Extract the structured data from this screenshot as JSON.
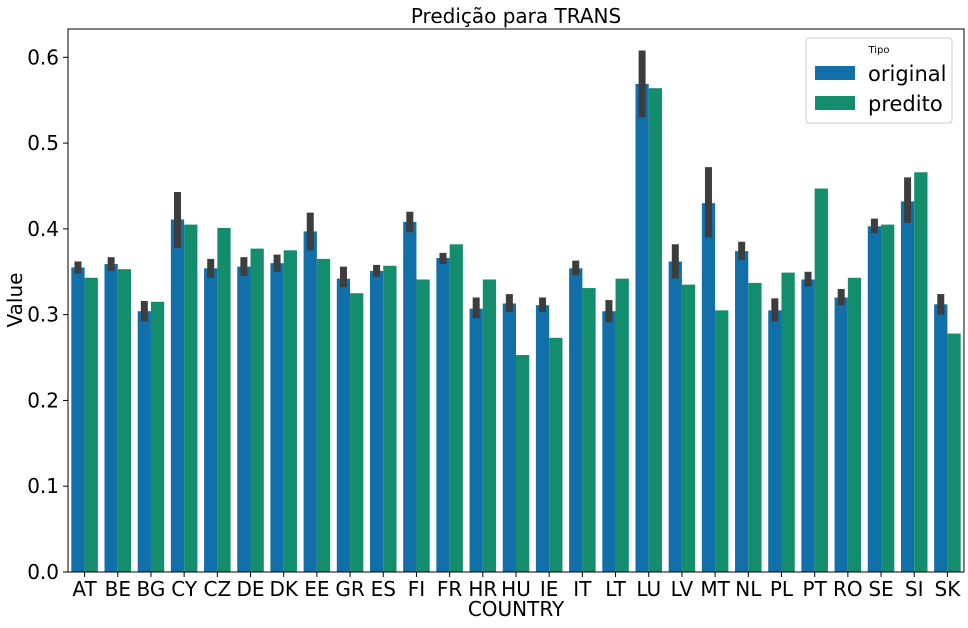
{
  "chart_data": {
    "type": "bar",
    "title": "Predição para TRANS",
    "xlabel": "COUNTRY",
    "ylabel": "Value",
    "ylim": [
      0,
      0.633
    ],
    "yticks": [
      "0.0",
      "0.1",
      "0.2",
      "0.3",
      "0.4",
      "0.5",
      "0.6"
    ],
    "yticks_values": [
      0,
      0.1,
      0.2,
      0.3,
      0.4,
      0.5,
      0.6
    ],
    "legend_title": "Tipo",
    "legend_placement": "top-right",
    "grid": false,
    "categories": [
      "AT",
      "BE",
      "BG",
      "CY",
      "CZ",
      "DE",
      "DK",
      "EE",
      "GR",
      "ES",
      "FI",
      "FR",
      "HR",
      "HU",
      "IE",
      "IT",
      "LT",
      "LU",
      "LV",
      "MT",
      "NL",
      "PL",
      "PT",
      "RO",
      "SE",
      "SI",
      "SK"
    ],
    "series": [
      {
        "name": "original",
        "color": "#1170aa",
        "values": [
          0.355,
          0.359,
          0.304,
          0.411,
          0.354,
          0.356,
          0.36,
          0.397,
          0.342,
          0.351,
          0.408,
          0.366,
          0.307,
          0.313,
          0.311,
          0.354,
          0.304,
          0.569,
          0.362,
          0.43,
          0.374,
          0.305,
          0.341,
          0.32,
          0.403,
          0.432,
          0.312
        ],
        "error_low": [
          0.348,
          0.351,
          0.292,
          0.378,
          0.343,
          0.345,
          0.35,
          0.375,
          0.332,
          0.344,
          0.396,
          0.359,
          0.296,
          0.303,
          0.303,
          0.346,
          0.291,
          0.53,
          0.342,
          0.39,
          0.364,
          0.292,
          0.333,
          0.311,
          0.395,
          0.407,
          0.3
        ],
        "error_high": [
          0.362,
          0.367,
          0.316,
          0.443,
          0.365,
          0.367,
          0.37,
          0.419,
          0.356,
          0.358,
          0.42,
          0.372,
          0.32,
          0.324,
          0.32,
          0.363,
          0.317,
          0.608,
          0.382,
          0.472,
          0.385,
          0.319,
          0.35,
          0.33,
          0.412,
          0.46,
          0.324
        ]
      },
      {
        "name": "predito",
        "color": "#138d6c",
        "values": [
          0.343,
          0.353,
          0.315,
          0.405,
          0.401,
          0.377,
          0.375,
          0.365,
          0.325,
          0.357,
          0.341,
          0.382,
          0.341,
          0.253,
          0.273,
          0.331,
          0.342,
          0.564,
          0.335,
          0.305,
          0.337,
          0.349,
          0.447,
          0.343,
          0.405,
          0.466,
          0.278
        ]
      }
    ]
  }
}
